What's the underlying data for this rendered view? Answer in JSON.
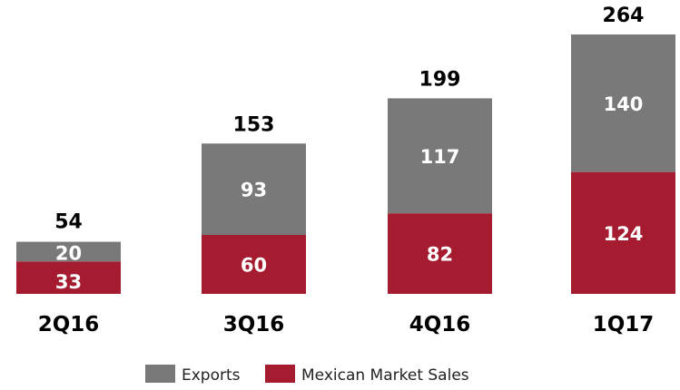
{
  "chart_data": {
    "type": "bar",
    "stacked": true,
    "categories": [
      "2Q16",
      "3Q16",
      "4Q16",
      "1Q17"
    ],
    "series": [
      {
        "name": "Mexican Market Sales",
        "values": [
          33,
          60,
          82,
          124
        ],
        "color": "#a51c30"
      },
      {
        "name": "Exports",
        "values": [
          20,
          93,
          117,
          140
        ],
        "color": "#797979"
      }
    ],
    "totals": [
      54,
      153,
      199,
      264
    ],
    "ylim": [
      0,
      264
    ],
    "legend": [
      "Exports",
      "Mexican Market Sales"
    ],
    "legend_position": "bottom",
    "grid": false
  }
}
